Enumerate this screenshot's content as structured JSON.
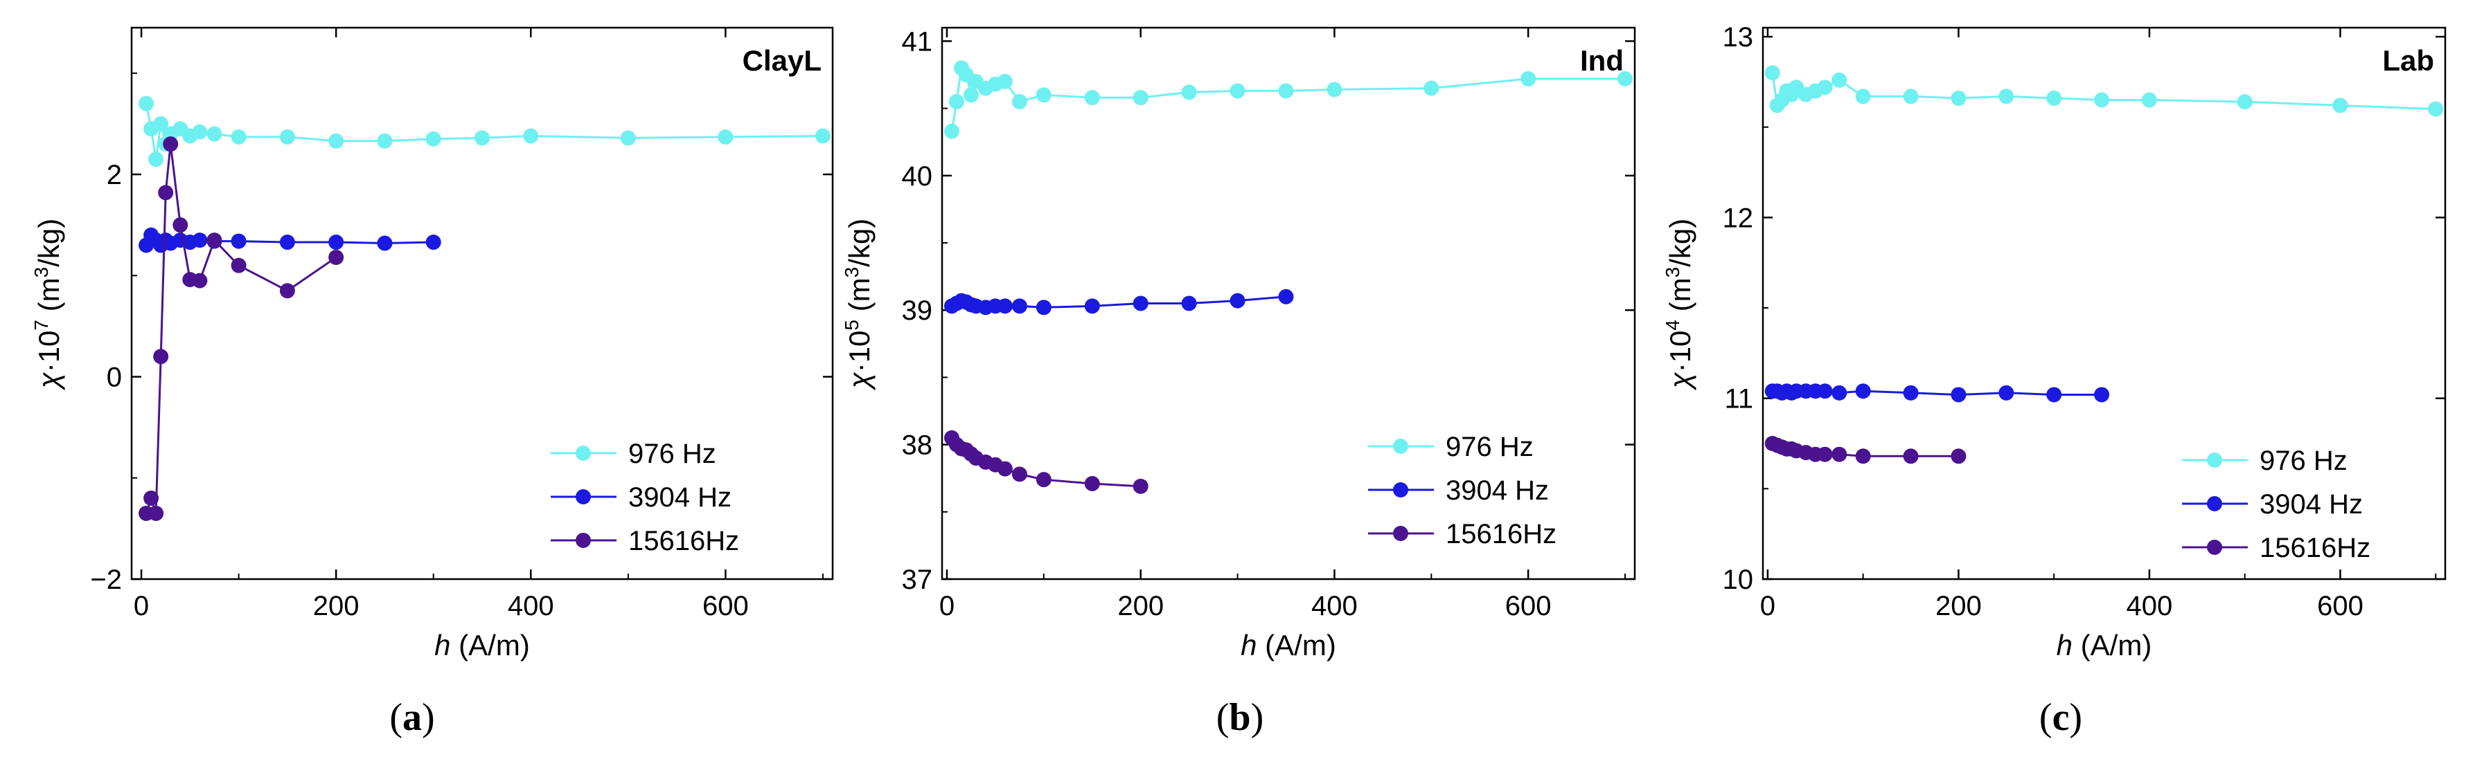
{
  "figure": {
    "captions": [
      "(a)",
      "(b)",
      "(c)"
    ]
  },
  "chart_data": [
    {
      "type": "line",
      "panel": "a",
      "caption": "(a)",
      "title": "ClayL",
      "xlabel": "h (A/m)",
      "xlabel_var": "h",
      "xlabel_unit": "(A/m)",
      "ylabel_main": "χ·10",
      "ylabel_exp": "7",
      "ylabel_unit_pre": "(m",
      "ylabel_unit_exp": "3",
      "ylabel_unit_post": "/kg)",
      "xlim": [
        -10,
        710
      ],
      "ylim": [
        -2,
        3.45
      ],
      "xticks": [
        0,
        200,
        400,
        600
      ],
      "xtick_labels": [
        "0",
        "200",
        "400",
        "600"
      ],
      "yticks": [
        -2,
        0,
        2
      ],
      "ytick_labels": [
        "−2",
        "0",
        "2"
      ],
      "legend_position": "lower-right",
      "series": [
        {
          "name": "976 Hz",
          "color": "#6ff0f0",
          "x": [
            5,
            10,
            15,
            20,
            25,
            30,
            40,
            50,
            60,
            75,
            100,
            150,
            200,
            250,
            300,
            350,
            400,
            500,
            600,
            700
          ],
          "y": [
            2.7,
            2.45,
            2.15,
            2.5,
            2.3,
            2.4,
            2.45,
            2.38,
            2.42,
            2.4,
            2.37,
            2.37,
            2.33,
            2.33,
            2.35,
            2.36,
            2.38,
            2.36,
            2.37,
            2.38
          ]
        },
        {
          "name": "3904 Hz",
          "color": "#1a1ae0",
          "x": [
            5,
            10,
            15,
            20,
            25,
            30,
            40,
            50,
            60,
            75,
            100,
            150,
            200,
            250,
            300
          ],
          "y": [
            1.3,
            1.4,
            1.35,
            1.3,
            1.35,
            1.32,
            1.35,
            1.33,
            1.35,
            1.34,
            1.34,
            1.33,
            1.33,
            1.32,
            1.33
          ]
        },
        {
          "name": "15616Hz",
          "color": "#4b1390",
          "x": [
            5,
            10,
            15,
            20,
            25,
            30,
            40,
            50,
            60,
            75,
            100,
            150,
            200
          ],
          "y": [
            -1.35,
            -1.2,
            -1.35,
            0.2,
            1.82,
            2.3,
            1.5,
            0.96,
            0.95,
            1.35,
            1.1,
            0.85,
            1.18
          ]
        }
      ]
    },
    {
      "type": "line",
      "panel": "b",
      "caption": "(b)",
      "title": "Ind",
      "xlabel": "h (A/m)",
      "xlabel_var": "h",
      "xlabel_unit": "(A/m)",
      "ylabel_main": "χ·10",
      "ylabel_exp": "5",
      "ylabel_unit_pre": "(m",
      "ylabel_unit_exp": "3",
      "ylabel_unit_post": "/kg)",
      "xlim": [
        -5,
        710
      ],
      "ylim": [
        37,
        41.1
      ],
      "xticks": [
        0,
        200,
        400,
        600
      ],
      "xtick_labels": [
        "0",
        "200",
        "400",
        "600"
      ],
      "yticks": [
        37,
        38,
        39,
        40,
        41
      ],
      "ytick_labels": [
        "37",
        "38",
        "39",
        "40",
        "41"
      ],
      "legend_position": "middle-right",
      "series": [
        {
          "name": "976 Hz",
          "color": "#6ff0f0",
          "x": [
            5,
            10,
            15,
            20,
            25,
            30,
            40,
            50,
            60,
            75,
            100,
            150,
            200,
            250,
            300,
            350,
            400,
            500,
            600,
            700
          ],
          "y": [
            40.33,
            40.55,
            40.8,
            40.75,
            40.6,
            40.7,
            40.65,
            40.68,
            40.7,
            40.55,
            40.6,
            40.58,
            40.58,
            40.62,
            40.63,
            40.63,
            40.64,
            40.65,
            40.72,
            40.72
          ]
        },
        {
          "name": "3904 Hz",
          "color": "#1a1ae0",
          "x": [
            5,
            10,
            15,
            20,
            25,
            30,
            40,
            50,
            60,
            75,
            100,
            150,
            200,
            250,
            300,
            350
          ],
          "y": [
            39.03,
            39.05,
            39.07,
            39.06,
            39.04,
            39.03,
            39.02,
            39.03,
            39.03,
            39.03,
            39.02,
            39.03,
            39.05,
            39.05,
            39.07,
            39.1
          ]
        },
        {
          "name": "15616Hz",
          "color": "#4b1390",
          "x": [
            5,
            10,
            15,
            20,
            25,
            30,
            40,
            50,
            60,
            75,
            100,
            150,
            200
          ],
          "y": [
            38.05,
            38.0,
            37.97,
            37.96,
            37.93,
            37.9,
            37.87,
            37.85,
            37.82,
            37.78,
            37.74,
            37.71,
            37.69
          ]
        }
      ]
    },
    {
      "type": "line",
      "panel": "c",
      "caption": "(c)",
      "title": "Lab",
      "xlabel": "h (A/m)",
      "xlabel_var": "h",
      "xlabel_unit": "(A/m)",
      "ylabel_main": "χ·10",
      "ylabel_exp": "4",
      "ylabel_unit_pre": "(m",
      "ylabel_unit_exp": "3",
      "ylabel_unit_post": "/kg)",
      "xlim": [
        -5,
        710
      ],
      "ylim": [
        10,
        13.05
      ],
      "xticks": [
        0,
        200,
        400,
        600
      ],
      "xtick_labels": [
        "0",
        "200",
        "400",
        "600"
      ],
      "yticks": [
        10,
        11,
        12,
        13
      ],
      "ytick_labels": [
        "10",
        "11",
        "12",
        "13"
      ],
      "legend_position": "lower-right",
      "series": [
        {
          "name": "976 Hz",
          "color": "#6ff0f0",
          "x": [
            5,
            10,
            15,
            20,
            25,
            30,
            40,
            50,
            60,
            75,
            100,
            150,
            200,
            250,
            300,
            350,
            400,
            500,
            600,
            700
          ],
          "y": [
            12.8,
            12.62,
            12.65,
            12.7,
            12.68,
            12.72,
            12.68,
            12.7,
            12.72,
            12.76,
            12.67,
            12.67,
            12.66,
            12.67,
            12.66,
            12.65,
            12.65,
            12.64,
            12.62,
            12.6
          ]
        },
        {
          "name": "3904 Hz",
          "color": "#1a1ae0",
          "x": [
            5,
            10,
            15,
            20,
            25,
            30,
            40,
            50,
            60,
            75,
            100,
            150,
            200,
            250,
            300,
            350
          ],
          "y": [
            11.04,
            11.04,
            11.03,
            11.04,
            11.03,
            11.04,
            11.04,
            11.04,
            11.04,
            11.03,
            11.04,
            11.03,
            11.02,
            11.03,
            11.02,
            11.02
          ]
        },
        {
          "name": "15616Hz",
          "color": "#4b1390",
          "x": [
            5,
            10,
            15,
            20,
            25,
            30,
            40,
            50,
            60,
            75,
            100,
            150,
            200
          ],
          "y": [
            10.75,
            10.74,
            10.73,
            10.72,
            10.72,
            10.71,
            10.7,
            10.69,
            10.69,
            10.69,
            10.68,
            10.68,
            10.68
          ]
        }
      ]
    }
  ]
}
